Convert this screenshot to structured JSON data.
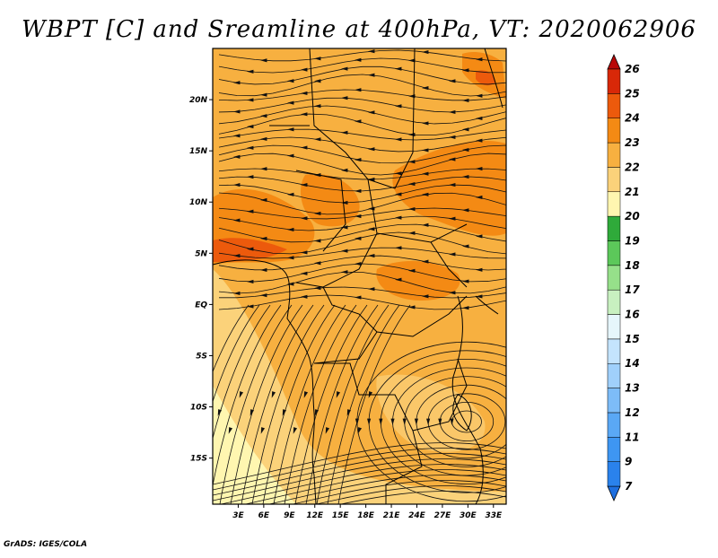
{
  "title": "WBPT [C] and Sreamline at 400hPa, VT: 2020062906",
  "footer": "GrADS: IGES/COLA",
  "map": {
    "lat_labels": [
      "20N",
      "15N",
      "10N",
      "5N",
      "EQ",
      "5S",
      "10S",
      "15S"
    ],
    "lat_values": [
      20,
      15,
      10,
      5,
      0,
      -5,
      -10,
      -15
    ],
    "lon_labels": [
      "3E",
      "6E",
      "9E",
      "12E",
      "15E",
      "18E",
      "21E",
      "24E",
      "27E",
      "30E",
      "33E"
    ],
    "lon_values": [
      3,
      6,
      9,
      12,
      15,
      18,
      21,
      24,
      27,
      30,
      33
    ],
    "lon_range": [
      0,
      34.5
    ],
    "lat_range": [
      -19.5,
      25
    ]
  },
  "colorbar": {
    "levels": [
      "7",
      "9",
      "11",
      "12",
      "13",
      "14",
      "15",
      "16",
      "17",
      "18",
      "19",
      "20",
      "21",
      "22",
      "23",
      "24",
      "25",
      "26"
    ],
    "colors": [
      "#1e6fe0",
      "#2a82ec",
      "#3e96f2",
      "#5aa8f5",
      "#7dbcf8",
      "#a0d0fb",
      "#c4e4fd",
      "#e6f6fb",
      "#c8f0c0",
      "#96e08a",
      "#5cc85a",
      "#2faa3a",
      "#fff6b0",
      "#fbd27a",
      "#f7b040",
      "#f48a14",
      "#ec5a0c",
      "#d82808",
      "#b80808"
    ]
  }
}
